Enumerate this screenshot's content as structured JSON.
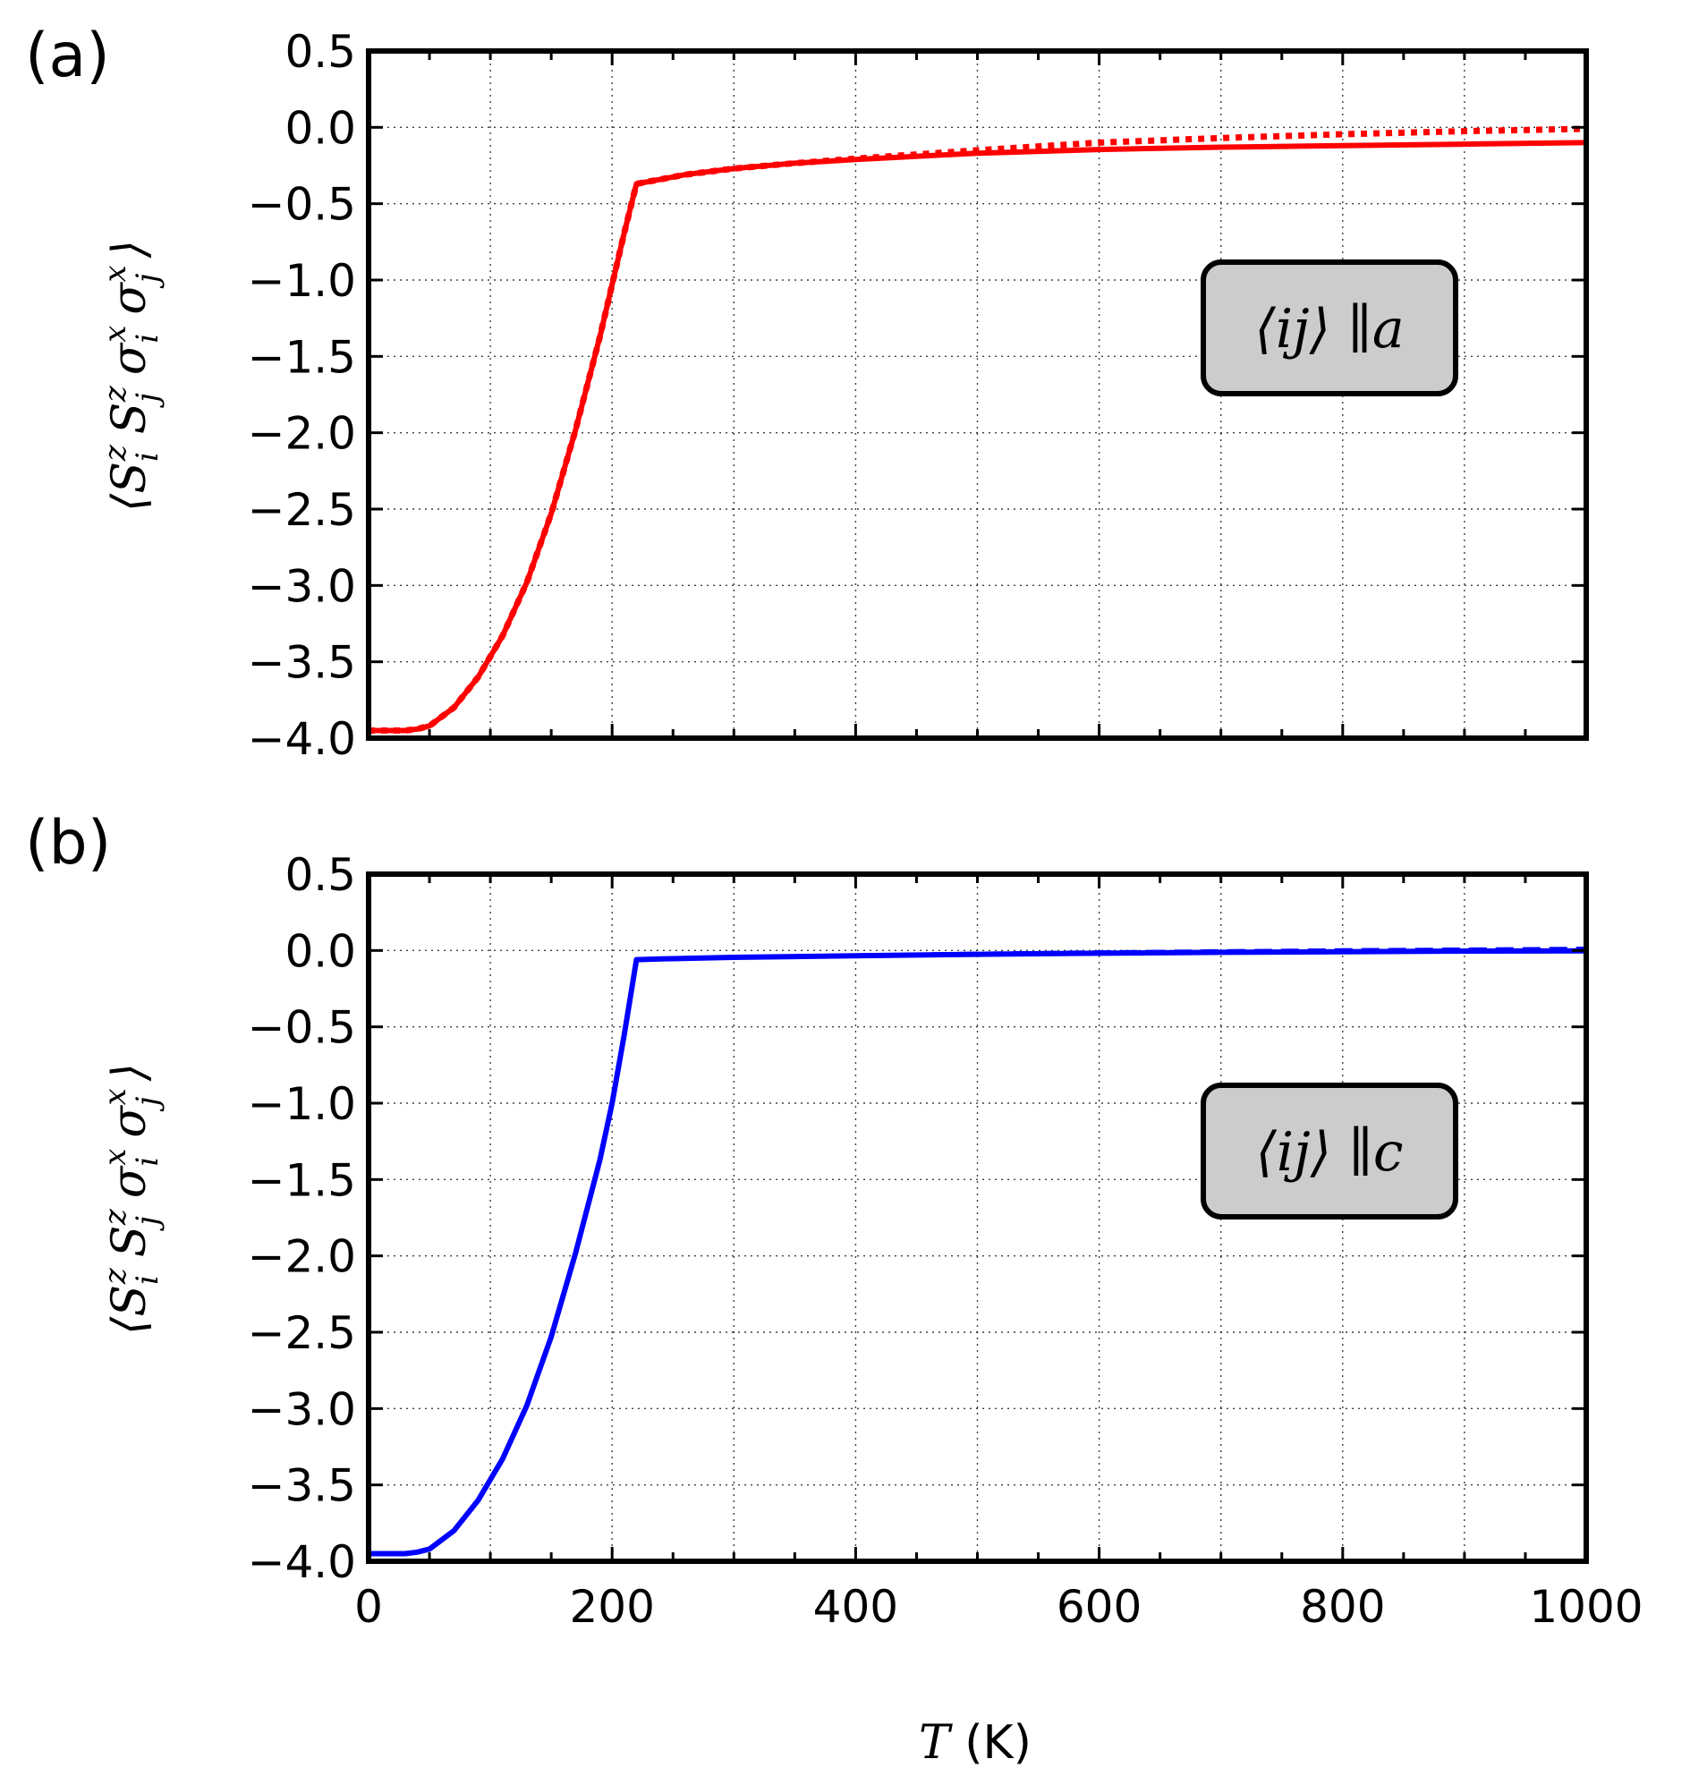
{
  "chart_data": [
    {
      "type": "line",
      "panel_label": "(a)",
      "ylabel": "⟨S_i^z S_j^z σ_i^x σ_j^x⟩",
      "ylabel_parts": [
        "S",
        "i",
        "z",
        "S",
        "j",
        "z",
        "σ",
        "i",
        "x",
        "σ",
        "j",
        "x"
      ],
      "xlabel": "T (K)",
      "xlabel_symbol": "T",
      "xlabel_unit": "(K)",
      "xlim": [
        0,
        1000
      ],
      "ylim": [
        -4.0,
        0.5
      ],
      "xticks": [
        0,
        200,
        400,
        600,
        800,
        1000
      ],
      "yticks": [
        0.5,
        0.0,
        -0.5,
        -1.0,
        -1.5,
        -2.0,
        -2.5,
        -3.0,
        -3.5,
        -4.0
      ],
      "ytick_labels": [
        "0.5",
        "0.0",
        "−0.5",
        "−1.0",
        "−1.5",
        "−2.0",
        "−2.5",
        "−3.0",
        "−3.5",
        "−4.0"
      ],
      "grid": true,
      "legend": {
        "text_prefix": "⟨ij⟩ ∥",
        "text_axis": "a",
        "placement": "center-right",
        "facecolor": "#cccccc"
      },
      "series": [
        {
          "name": "solid",
          "color": "#ff0000",
          "style": "solid",
          "x": [
            0,
            30,
            40,
            50,
            70,
            90,
            110,
            130,
            150,
            170,
            190,
            200,
            210,
            220,
            240,
            260,
            300,
            350,
            400,
            500,
            600,
            700,
            800,
            900,
            1000
          ],
          "y": [
            -3.95,
            -3.95,
            -3.94,
            -3.92,
            -3.8,
            -3.6,
            -3.33,
            -2.98,
            -2.53,
            -1.98,
            -1.37,
            -1.03,
            -0.69,
            -0.37,
            -0.34,
            -0.31,
            -0.27,
            -0.235,
            -0.21,
            -0.17,
            -0.145,
            -0.13,
            -0.12,
            -0.11,
            -0.1
          ]
        },
        {
          "name": "dotted",
          "color": "#ff0000",
          "style": "dotted",
          "x": [
            0,
            30,
            40,
            50,
            70,
            90,
            110,
            130,
            150,
            170,
            190,
            200,
            210,
            220,
            240,
            260,
            300,
            350,
            400,
            500,
            600,
            700,
            800,
            900,
            1000
          ],
          "y": [
            -3.95,
            -3.95,
            -3.94,
            -3.92,
            -3.8,
            -3.6,
            -3.33,
            -2.98,
            -2.53,
            -1.98,
            -1.37,
            -1.03,
            -0.69,
            -0.37,
            -0.34,
            -0.31,
            -0.27,
            -0.235,
            -0.205,
            -0.15,
            -0.1,
            -0.07,
            -0.045,
            -0.025,
            -0.01
          ]
        }
      ]
    },
    {
      "type": "line",
      "panel_label": "(b)",
      "ylabel": "⟨S_i^z S_j^z σ_i^x σ_j^x⟩",
      "ylabel_parts": [
        "S",
        "i",
        "z",
        "S",
        "j",
        "z",
        "σ",
        "i",
        "x",
        "σ",
        "j",
        "x"
      ],
      "xlabel": "T (K)",
      "xlabel_symbol": "T",
      "xlabel_unit": "(K)",
      "xlim": [
        0,
        1000
      ],
      "ylim": [
        -4.0,
        0.5
      ],
      "xticks": [
        0,
        200,
        400,
        600,
        800,
        1000
      ],
      "xtick_labels": [
        "0",
        "200",
        "400",
        "600",
        "800",
        "1000"
      ],
      "yticks": [
        0.5,
        0.0,
        -0.5,
        -1.0,
        -1.5,
        -2.0,
        -2.5,
        -3.0,
        -3.5,
        -4.0
      ],
      "ytick_labels": [
        "0.5",
        "0.0",
        "−0.5",
        "−1.0",
        "−1.5",
        "−2.0",
        "−2.5",
        "−3.0",
        "−3.5",
        "−4.0"
      ],
      "grid": true,
      "legend": {
        "text_prefix": "⟨ij⟩ ∥",
        "text_axis": "c",
        "placement": "center-right",
        "facecolor": "#cccccc"
      },
      "series": [
        {
          "name": "solid",
          "color": "#0000ff",
          "style": "solid",
          "x": [
            0,
            30,
            40,
            50,
            70,
            90,
            110,
            130,
            150,
            170,
            190,
            200,
            210,
            220,
            240,
            300,
            400,
            500,
            600,
            700,
            800,
            900,
            1000
          ],
          "y": [
            -3.95,
            -3.95,
            -3.94,
            -3.92,
            -3.8,
            -3.6,
            -3.33,
            -2.98,
            -2.53,
            -1.98,
            -1.37,
            -1.0,
            -0.55,
            -0.06,
            -0.055,
            -0.045,
            -0.035,
            -0.025,
            -0.018,
            -0.012,
            -0.008,
            -0.004,
            -0.002
          ]
        },
        {
          "name": "dashed",
          "color": "#0000ff",
          "style": "dashed",
          "x": [
            0,
            30,
            40,
            50,
            70,
            90,
            110,
            130,
            150,
            170,
            190,
            200,
            210,
            220,
            240,
            300,
            400,
            500,
            600,
            700,
            800,
            900,
            1000
          ],
          "y": [
            -3.95,
            -3.95,
            -3.94,
            -3.92,
            -3.8,
            -3.6,
            -3.33,
            -2.98,
            -2.53,
            -1.98,
            -1.37,
            -1.0,
            -0.55,
            -0.06,
            -0.055,
            -0.045,
            -0.033,
            -0.022,
            -0.013,
            -0.006,
            0.0,
            0.005,
            0.01
          ]
        }
      ]
    }
  ]
}
